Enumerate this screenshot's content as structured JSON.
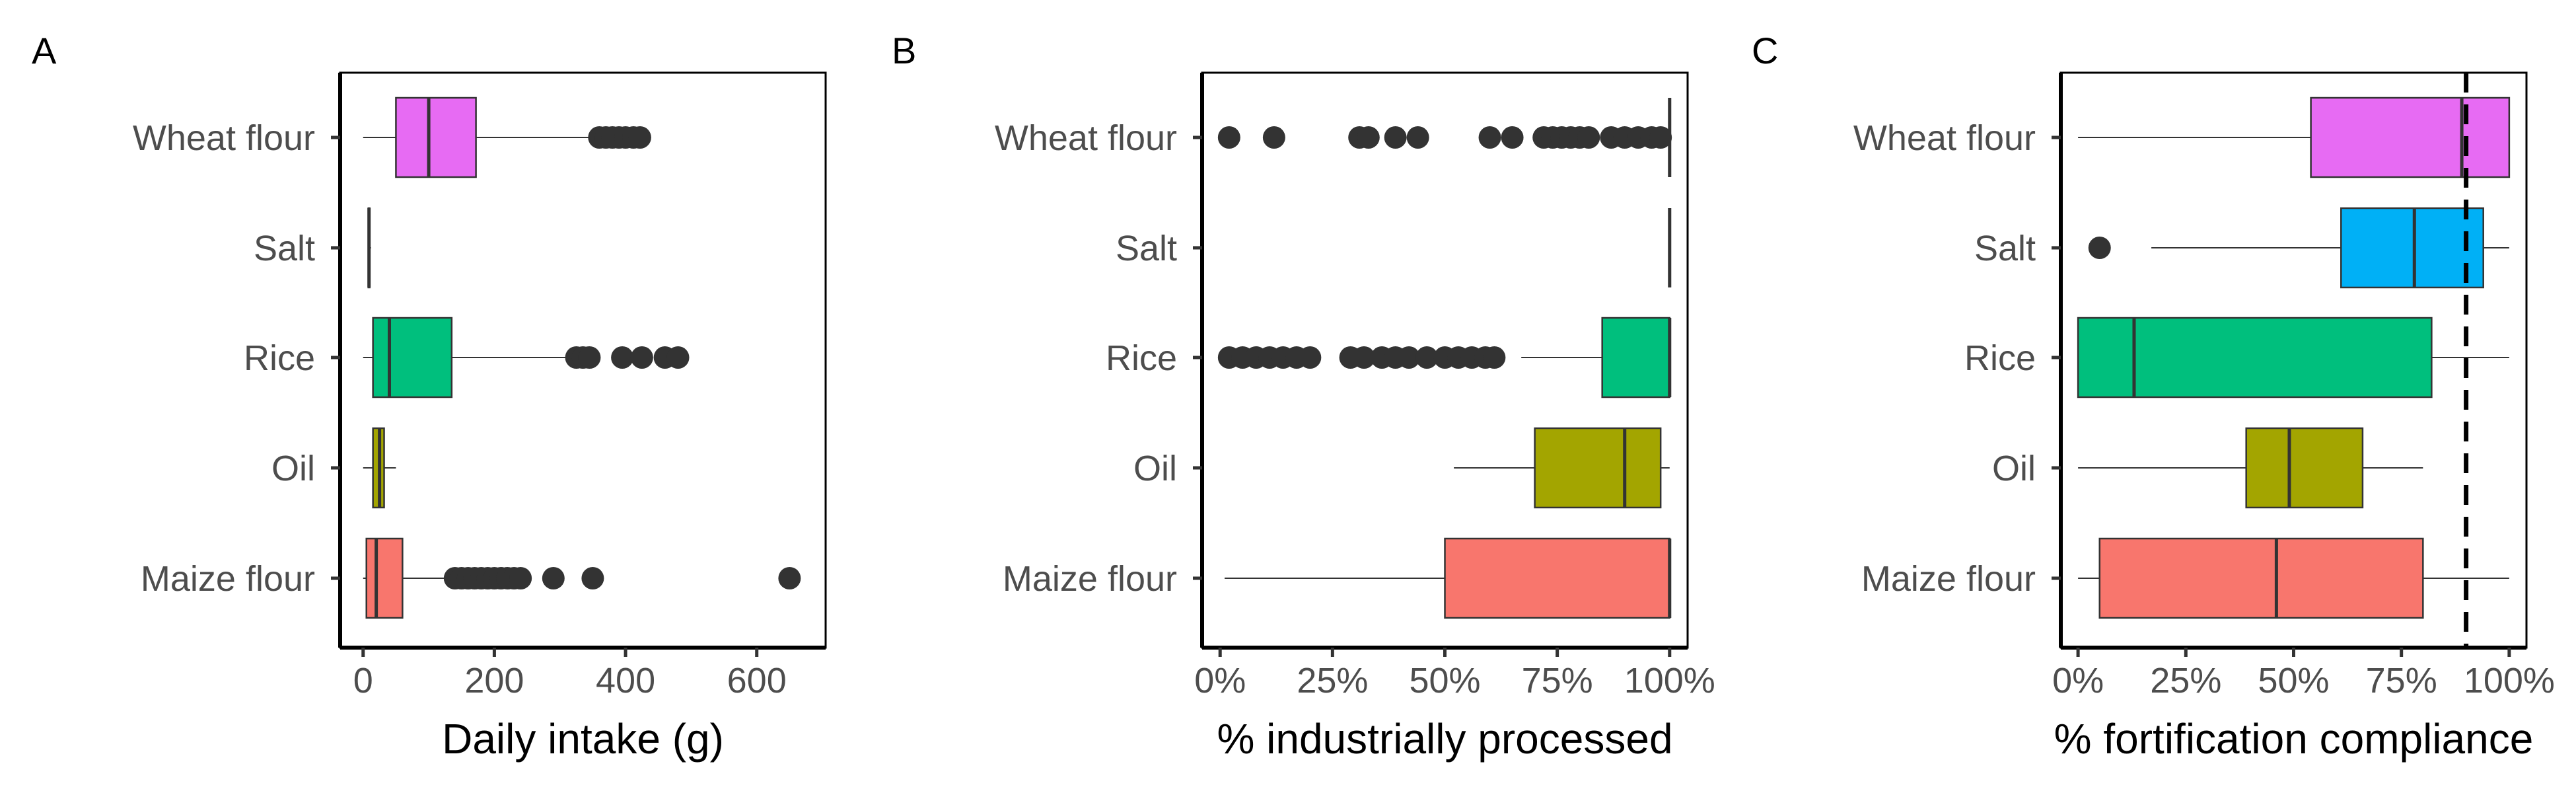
{
  "chart_data": [
    {
      "panel": "A",
      "type": "boxplot",
      "orientation": "horizontal",
      "xlabel": "Daily intake (g)",
      "ylabel": "",
      "xlim": [
        -35,
        705
      ],
      "xticks": [
        0,
        200,
        400,
        600
      ],
      "xtick_labels": [
        "0",
        "200",
        "400",
        "600"
      ],
      "categories": [
        "Wheat flour",
        "Salt",
        "Rice",
        "Oil",
        "Maize flour"
      ],
      "grid": false,
      "legend": "none",
      "boxes": [
        {
          "category": "Wheat flour",
          "color": "#E76BF3",
          "min": 0,
          "q1": 50,
          "median": 100,
          "q3": 172,
          "max": 355,
          "outliers": [
            360,
            370,
            380,
            390,
            400,
            412,
            422
          ]
        },
        {
          "category": "Salt",
          "color": "#00B0F6",
          "min": 7,
          "q1": 8,
          "median": 9,
          "q3": 10,
          "max": 12,
          "outliers": []
        },
        {
          "category": "Rice",
          "color": "#00BF7D",
          "min": 0,
          "q1": 15,
          "median": 40,
          "q3": 135,
          "max": 320,
          "outliers": [
            325,
            335,
            345,
            395,
            425,
            460,
            480
          ]
        },
        {
          "category": "Oil",
          "color": "#A3A500",
          "min": 0,
          "q1": 15,
          "median": 25,
          "q3": 32,
          "max": 50,
          "outliers": []
        },
        {
          "category": "Maize flour",
          "color": "#F8766D",
          "min": 0,
          "q1": 5,
          "median": 20,
          "q3": 60,
          "max": 130,
          "outliers": [
            140,
            150,
            160,
            170,
            180,
            190,
            200,
            210,
            220,
            230,
            240,
            290,
            350,
            650
          ]
        }
      ]
    },
    {
      "panel": "B",
      "type": "boxplot",
      "orientation": "horizontal",
      "xlabel": "% industrially processed",
      "ylabel": "",
      "xlim": [
        -0.04,
        1.04
      ],
      "xticks": [
        0,
        0.25,
        0.5,
        0.75,
        1
      ],
      "xtick_labels": [
        "0%",
        "25%",
        "50%",
        "75%",
        "100%"
      ],
      "categories": [
        "Wheat flour",
        "Salt",
        "Rice",
        "Oil",
        "Maize flour"
      ],
      "grid": false,
      "legend": "none",
      "boxes": [
        {
          "category": "Wheat flour",
          "color": "#E76BF3",
          "min": 1,
          "q1": 1,
          "median": 1,
          "q3": 1,
          "max": 1,
          "outliers": [
            0.02,
            0.12,
            0.31,
            0.33,
            0.39,
            0.44,
            0.6,
            0.65,
            0.72,
            0.74,
            0.76,
            0.78,
            0.8,
            0.82,
            0.87,
            0.9,
            0.93,
            0.96,
            0.98
          ]
        },
        {
          "category": "Salt",
          "color": "#00B0F6",
          "min": 1,
          "q1": 1,
          "median": 1,
          "q3": 1,
          "max": 1,
          "outliers": []
        },
        {
          "category": "Rice",
          "color": "#00BF7D",
          "min": 0.67,
          "q1": 0.85,
          "median": 1,
          "q3": 1,
          "max": 1,
          "outliers": [
            0.02,
            0.05,
            0.08,
            0.11,
            0.14,
            0.17,
            0.2,
            0.29,
            0.32,
            0.36,
            0.39,
            0.42,
            0.46,
            0.5,
            0.53,
            0.56,
            0.59,
            0.61
          ]
        },
        {
          "category": "Oil",
          "color": "#A3A500",
          "min": 0.52,
          "q1": 0.7,
          "median": 0.9,
          "q3": 0.98,
          "max": 1,
          "outliers": []
        },
        {
          "category": "Maize flour",
          "color": "#F8766D",
          "min": 0.01,
          "q1": 0.5,
          "median": 1,
          "q3": 1,
          "max": 1,
          "outliers": []
        }
      ]
    },
    {
      "panel": "C",
      "type": "boxplot",
      "orientation": "horizontal",
      "xlabel": "% fortification compliance",
      "ylabel": "",
      "xlim": [
        -0.04,
        1.04
      ],
      "xticks": [
        0,
        0.25,
        0.5,
        0.75,
        1
      ],
      "xtick_labels": [
        "0%",
        "25%",
        "50%",
        "75%",
        "100%"
      ],
      "categories": [
        "Wheat flour",
        "Salt",
        "Rice",
        "Oil",
        "Maize flour"
      ],
      "grid": false,
      "legend": "none",
      "reference_line": {
        "x": 0.9,
        "style": "dashed",
        "color": "#000000"
      },
      "boxes": [
        {
          "category": "Wheat flour",
          "color": "#E76BF3",
          "min": 0,
          "q1": 0.54,
          "median": 0.89,
          "q3": 1,
          "max": 1,
          "outliers": []
        },
        {
          "category": "Salt",
          "color": "#00B0F6",
          "min": 0.17,
          "q1": 0.61,
          "median": 0.78,
          "q3": 0.94,
          "max": 1,
          "outliers": [
            0.05
          ]
        },
        {
          "category": "Rice",
          "color": "#00BF7D",
          "min": 0,
          "q1": 0,
          "median": 0.13,
          "q3": 0.82,
          "max": 1,
          "outliers": []
        },
        {
          "category": "Oil",
          "color": "#A3A500",
          "min": 0,
          "q1": 0.39,
          "median": 0.49,
          "q3": 0.66,
          "max": 0.8,
          "outliers": []
        },
        {
          "category": "Maize flour",
          "color": "#F8766D",
          "min": 0,
          "q1": 0.05,
          "median": 0.46,
          "q3": 0.8,
          "max": 1,
          "outliers": []
        }
      ]
    }
  ]
}
